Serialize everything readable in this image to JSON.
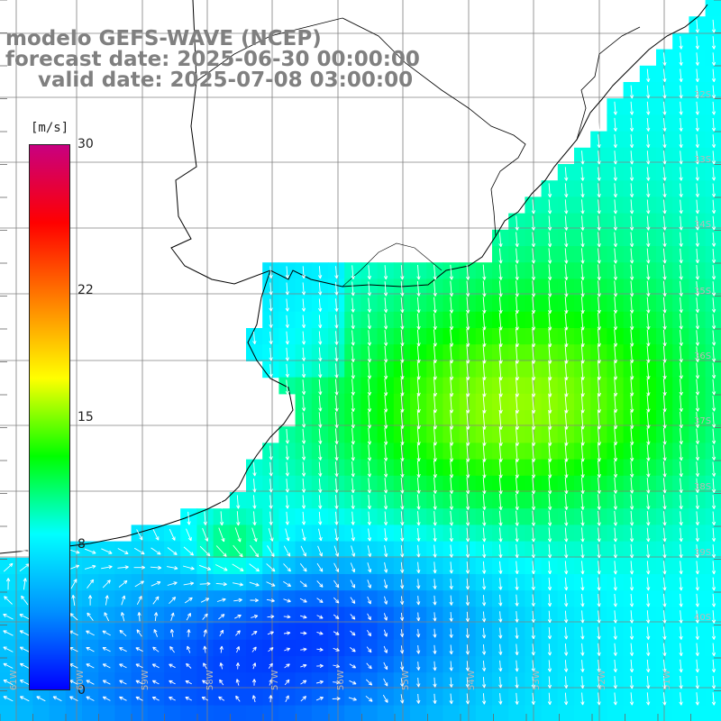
{
  "title": {
    "line1": "modelo GEFS-WAVE (NCEP)",
    "line2": "forecast date: 2025-06-30 00:00:00",
    "line3": "valid date: 2025-07-08 03:00:00"
  },
  "colorbar": {
    "unit": "[m/s]",
    "range": [
      0,
      30
    ],
    "ticks": [
      {
        "value": 30,
        "label": "30"
      },
      {
        "value": 22,
        "label": "22"
      },
      {
        "value": 15,
        "label": "15"
      },
      {
        "value": 8,
        "label": "8"
      },
      {
        "value": 0,
        "label": "0"
      }
    ],
    "colors": [
      "#0000ff",
      "#0090ff",
      "#00ffff",
      "#00ff00",
      "#ffff00",
      "#ff8000",
      "#ff0000",
      "#c80080"
    ]
  },
  "grid": {
    "lat_labels": [
      "32S",
      "33S",
      "34S",
      "35S",
      "36S",
      "37S",
      "38S",
      "39S",
      "40S"
    ],
    "lon_labels": [
      "61W",
      "60W",
      "59W",
      "58W",
      "57W",
      "56W",
      "55W",
      "54W",
      "53W",
      "52W",
      "51W"
    ]
  },
  "field": {
    "description_colors": {
      "land": "#ffffff",
      "coast": "#000000",
      "gridline": "#808080",
      "arrow": "#ffffff"
    }
  }
}
